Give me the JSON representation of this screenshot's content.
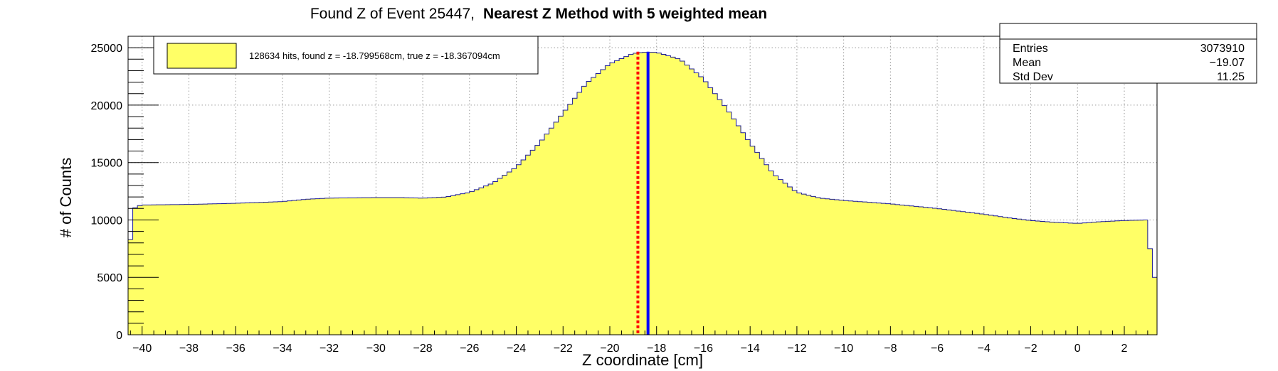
{
  "chart_data": {
    "type": "histogram",
    "title": "Found Z of Event 25447,",
    "title_bold": "Nearest Z Method with 5 weighted mean",
    "xlabel": "Z coordinate [cm]",
    "ylabel": "# of Counts",
    "xlim": [
      -40.6,
      3.4
    ],
    "ylim": [
      0,
      26000
    ],
    "x_ticks": [
      -40,
      -38,
      -36,
      -34,
      -32,
      -30,
      -28,
      -26,
      -24,
      -22,
      -20,
      -18,
      -16,
      -14,
      -12,
      -10,
      -8,
      -6,
      -4,
      -2,
      0,
      2
    ],
    "x_tick_labels": [
      "−40",
      "−38",
      "−36",
      "−34",
      "−32",
      "−30",
      "−28",
      "−26",
      "−24",
      "−22",
      "−20",
      "−18",
      "−16",
      "−14",
      "−12",
      "−10",
      "−8",
      "−6",
      "−4",
      "−2",
      "0",
      "2"
    ],
    "y_ticks": [
      0,
      5000,
      10000,
      15000,
      20000,
      25000
    ],
    "y_tick_labels": [
      "0",
      "5000",
      "10000",
      "15000",
      "20000",
      "25000"
    ],
    "grid": true,
    "bin_width": 0.2,
    "profile_x": [
      -40.6,
      -40.4,
      -40.2,
      -40.0,
      -38.0,
      -36.0,
      -34.0,
      -33.0,
      -32.0,
      -30.0,
      -29.0,
      -28.0,
      -27.0,
      -26.0,
      -25.0,
      -24.0,
      -23.0,
      -22.0,
      -21.0,
      -20.0,
      -19.0,
      -18.6,
      -18.0,
      -17.0,
      -16.0,
      -15.0,
      -14.0,
      -13.0,
      -12.0,
      -11.0,
      -10.0,
      -9.0,
      -8.0,
      -7.0,
      -6.0,
      -5.0,
      -4.0,
      -3.0,
      -2.0,
      -1.0,
      0.0,
      1.0,
      2.0,
      3.0,
      3.2
    ],
    "profile_y": [
      5700,
      10900,
      11200,
      11300,
      11350,
      11450,
      11600,
      11800,
      11900,
      11950,
      11950,
      11900,
      12000,
      12400,
      13200,
      14600,
      16700,
      19300,
      21900,
      23600,
      24500,
      24600,
      24600,
      24000,
      22300,
      19700,
      16700,
      14000,
      12400,
      11900,
      11700,
      11550,
      11400,
      11200,
      11000,
      10750,
      10500,
      10200,
      9950,
      9800,
      9700,
      9850,
      9950,
      10000,
      5000
    ],
    "fill_color": "#ffff66",
    "outline_color": "#1c1c96",
    "lines": [
      {
        "name": "found z",
        "x": -18.799568,
        "color": "#ff0000",
        "style": "dotted"
      },
      {
        "name": "true z",
        "x": -18.367094,
        "color": "#0000ff",
        "style": "solid"
      }
    ],
    "legend": {
      "location": "top-left",
      "entries": [
        {
          "label": "128634 hits, found z = -18.799568cm, true z = -18.367094cm",
          "color": "#ffff66"
        }
      ]
    },
    "stats": {
      "location": "top-right",
      "rows": [
        {
          "label": "Entries",
          "value": "3073910"
        },
        {
          "label": "Mean",
          "value": "−19.07"
        },
        {
          "label": "Std Dev",
          "value": "11.25"
        }
      ]
    }
  }
}
